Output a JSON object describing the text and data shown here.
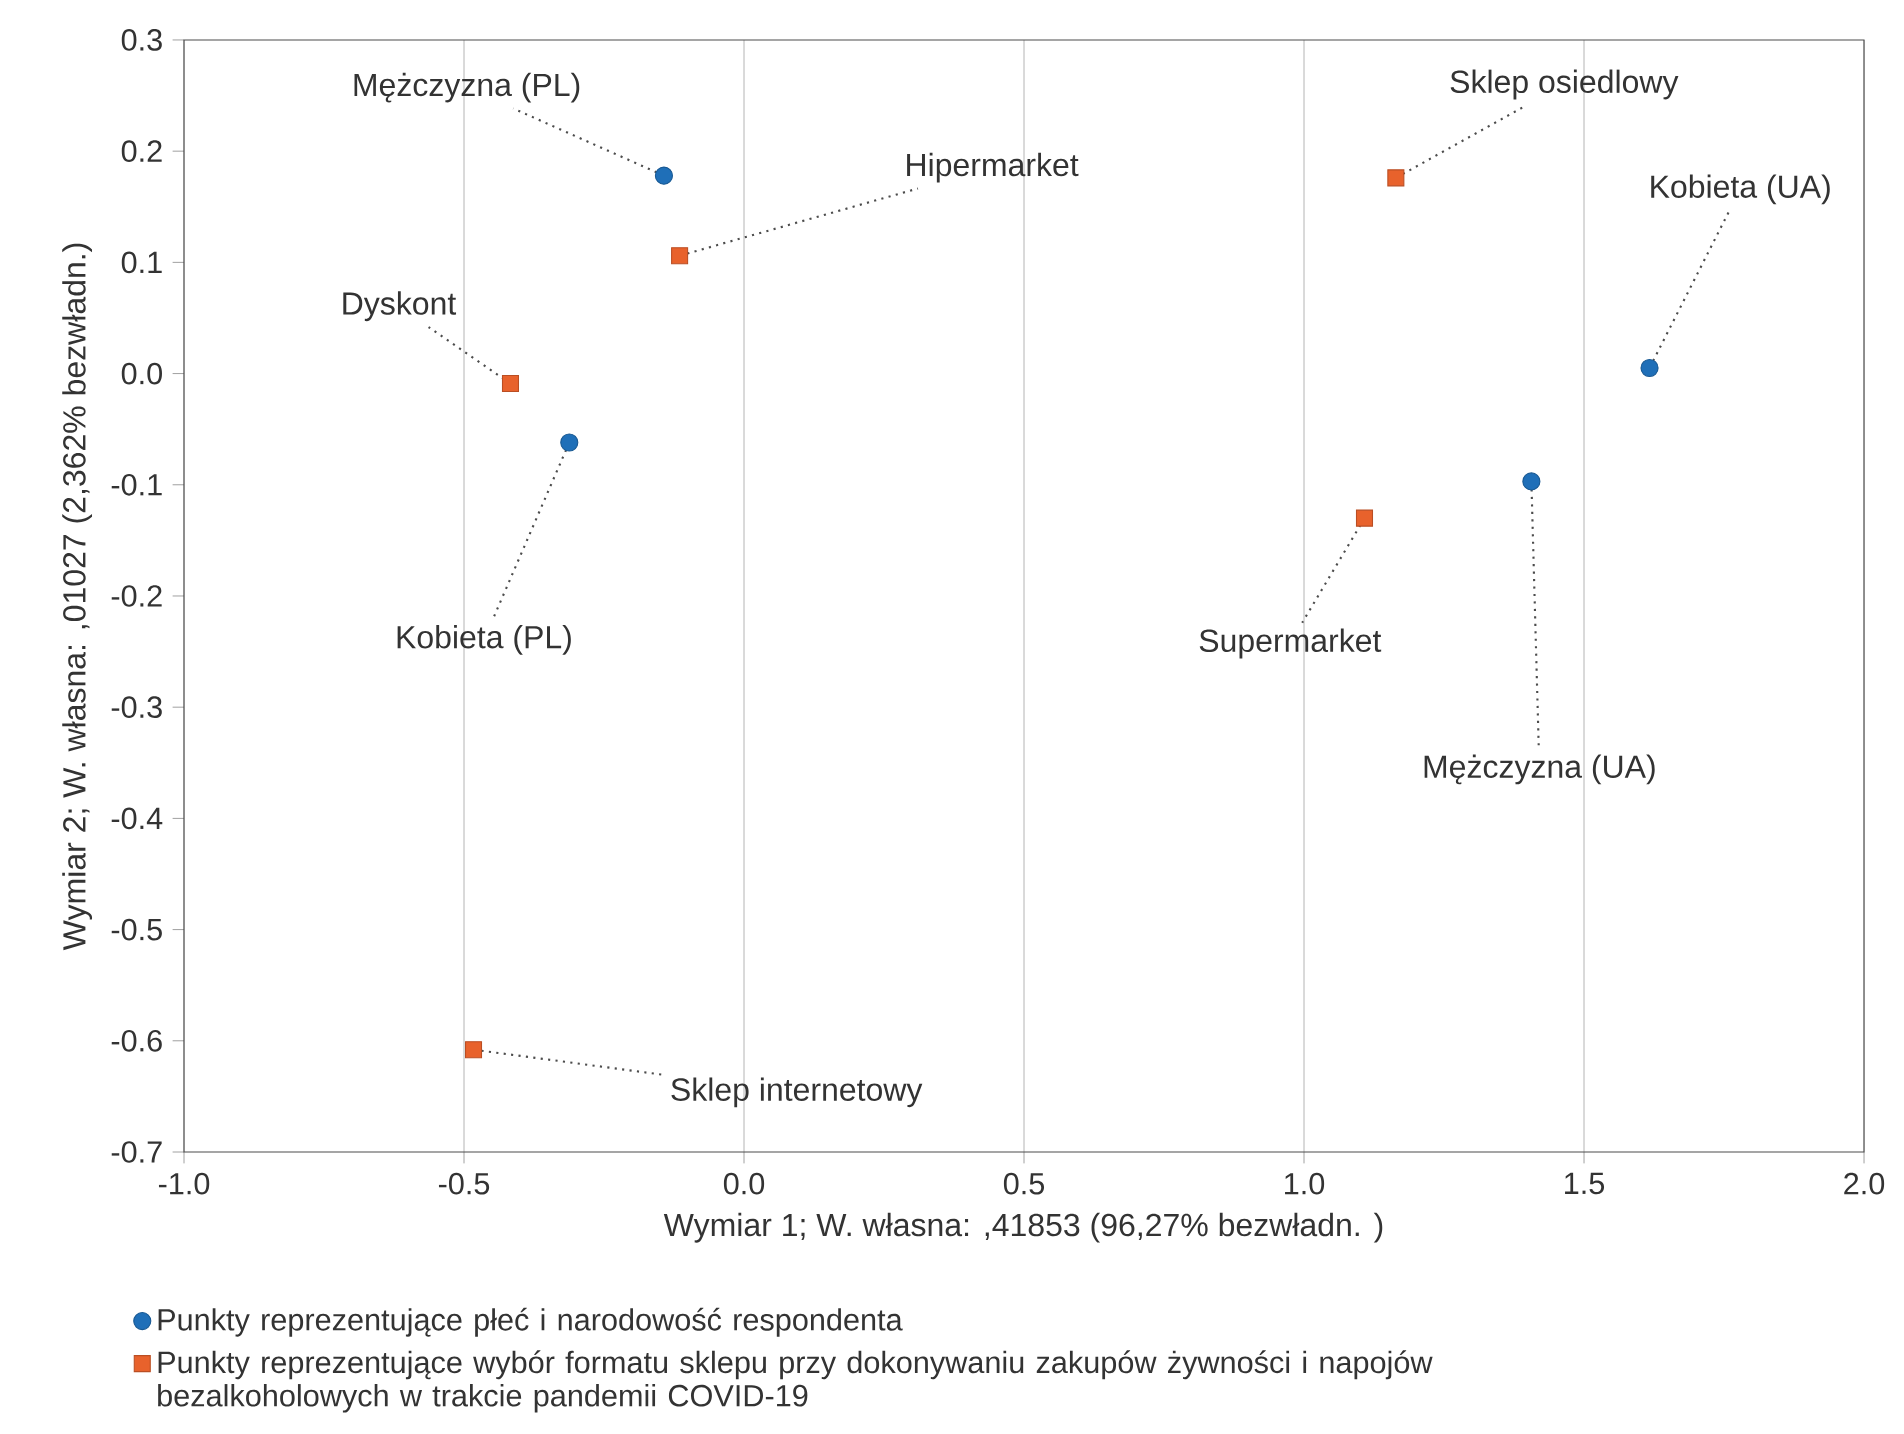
{
  "chart_data": {
    "type": "scatter",
    "xlabel": "Wymiar 1; W. własna:  ,41853 (96,27% bezwładn. )",
    "ylabel": "Wymiar 2; W. własna: ,01027 (2,362% bezwładn.)",
    "xlim": [
      -1.0,
      2.0
    ],
    "ylim": [
      -0.7,
      0.3
    ],
    "xticks": [
      {
        "value": -1.0,
        "label": "-1.0"
      },
      {
        "value": -0.5,
        "label": "-0.5"
      },
      {
        "value": 0,
        "label": "0.0"
      },
      {
        "value": 0.5,
        "label": "0.5"
      },
      {
        "value": 1.0,
        "label": "1.0"
      },
      {
        "value": 1.5,
        "label": "1.5"
      },
      {
        "value": 2.0,
        "label": "2.0"
      }
    ],
    "yticks": [
      {
        "value": -0.7,
        "label": "-0.7"
      },
      {
        "value": -0.6,
        "label": "-0.6"
      },
      {
        "value": -0.5,
        "label": "-0.5"
      },
      {
        "value": -0.4,
        "label": "-0.4"
      },
      {
        "value": -0.3,
        "label": "-0.3"
      },
      {
        "value": -0.2,
        "label": "-0.2"
      },
      {
        "value": -0.1,
        "label": "-0.1"
      },
      {
        "value": 0,
        "label": "0.0"
      },
      {
        "value": 0.1,
        "label": "0.1"
      },
      {
        "value": 0.2,
        "label": "0.2"
      },
      {
        "value": 0.3,
        "label": "0.3"
      }
    ],
    "grid": "x",
    "legend": "bottom",
    "series": [
      {
        "name": "Punkty reprezentujące płeć i narodowość respondenta",
        "color": "#1f6fb8",
        "marker": "circle",
        "x": [
          -0.143,
          -0.312,
          1.617,
          1.406
        ],
        "values": [
          0.178,
          -0.062,
          0.005,
          -0.097
        ]
      },
      {
        "name": "Punkty reprezentujące wybór formatu sklepu przy dokonywaniu zakupów żywności i napojów bezalkoholowych w trakcie pandemii COVID-19",
        "color": "#e8622c",
        "marker": "square",
        "x": [
          -0.115,
          -0.417,
          1.164,
          1.108,
          -0.483
        ],
        "values": [
          0.106,
          -0.009,
          0.176,
          -0.13,
          -0.608
        ]
      }
    ],
    "annotations": [
      {
        "text": "Mężczyzna (PL)",
        "x": -0.143,
        "y": 0.178
      },
      {
        "text": "Hipermarket",
        "x": -0.115,
        "y": 0.106
      },
      {
        "text": "Dyskont",
        "x": -0.417,
        "y": -0.009
      },
      {
        "text": "Kobieta (PL)",
        "x": -0.312,
        "y": -0.062
      },
      {
        "text": "Sklep osiedlowy",
        "x": 1.164,
        "y": 0.176
      },
      {
        "text": "Kobieta (UA)",
        "x": 1.617,
        "y": 0.005
      },
      {
        "text": "Supermarket",
        "x": 1.108,
        "y": -0.13
      },
      {
        "text": "Mężczyzna (UA)",
        "x": 1.406,
        "y": -0.097
      },
      {
        "text": "Sklep internetowy",
        "x": -0.483,
        "y": -0.608
      }
    ]
  }
}
